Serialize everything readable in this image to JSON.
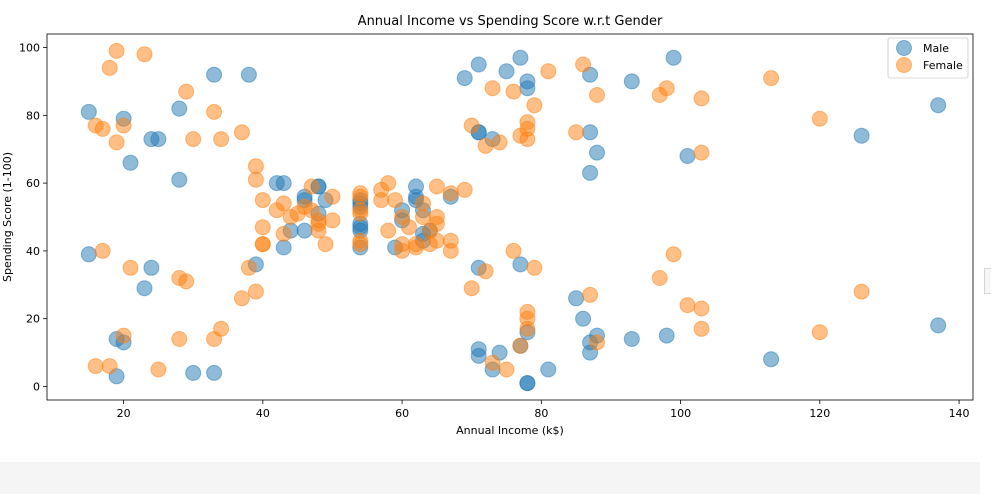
{
  "chart_data": {
    "type": "scatter",
    "title": "Annual Income vs Spending Score w.r.t Gender",
    "xlabel": "Annual Income (k$)",
    "ylabel": "Spending Score (1-100)",
    "xlim": [
      9,
      142
    ],
    "ylim": [
      -4,
      104
    ],
    "xticks": [
      20,
      40,
      60,
      80,
      100,
      120,
      140
    ],
    "yticks": [
      0,
      20,
      40,
      60,
      80,
      100
    ],
    "grid": false,
    "legend_position": "top-right",
    "series": [
      {
        "name": "Male",
        "color": "#1f77b4",
        "points": [
          [
            15,
            39
          ],
          [
            15,
            81
          ],
          [
            19,
            3
          ],
          [
            19,
            14
          ],
          [
            20,
            13
          ],
          [
            20,
            79
          ],
          [
            21,
            66
          ],
          [
            23,
            29
          ],
          [
            24,
            35
          ],
          [
            24,
            73
          ],
          [
            25,
            73
          ],
          [
            28,
            61
          ],
          [
            28,
            82
          ],
          [
            30,
            4
          ],
          [
            33,
            4
          ],
          [
            33,
            92
          ],
          [
            38,
            92
          ],
          [
            39,
            36
          ],
          [
            42,
            60
          ],
          [
            43,
            60
          ],
          [
            43,
            41
          ],
          [
            44,
            46
          ],
          [
            46,
            46
          ],
          [
            46,
            56
          ],
          [
            46,
            55
          ],
          [
            48,
            59
          ],
          [
            48,
            59
          ],
          [
            48,
            51
          ],
          [
            49,
            55
          ],
          [
            54,
            41
          ],
          [
            54,
            46
          ],
          [
            54,
            48
          ],
          [
            54,
            47
          ],
          [
            54,
            53
          ],
          [
            54,
            54
          ],
          [
            54,
            55
          ],
          [
            59,
            41
          ],
          [
            60,
            49
          ],
          [
            60,
            52
          ],
          [
            62,
            59
          ],
          [
            62,
            55
          ],
          [
            62,
            56
          ],
          [
            63,
            52
          ],
          [
            63,
            43
          ],
          [
            63,
            45
          ],
          [
            64,
            46
          ],
          [
            67,
            56
          ],
          [
            69,
            91
          ],
          [
            71,
            95
          ],
          [
            71,
            75
          ],
          [
            71,
            75
          ],
          [
            71,
            35
          ],
          [
            71,
            11
          ],
          [
            71,
            9
          ],
          [
            73,
            73
          ],
          [
            73,
            5
          ],
          [
            74,
            10
          ],
          [
            75,
            93
          ],
          [
            77,
            97
          ],
          [
            77,
            36
          ],
          [
            77,
            12
          ],
          [
            78,
            1
          ],
          [
            78,
            1
          ],
          [
            78,
            16
          ],
          [
            78,
            88
          ],
          [
            78,
            90
          ],
          [
            81,
            5
          ],
          [
            85,
            26
          ],
          [
            86,
            20
          ],
          [
            87,
            92
          ],
          [
            87,
            75
          ],
          [
            87,
            63
          ],
          [
            87,
            13
          ],
          [
            87,
            10
          ],
          [
            88,
            15
          ],
          [
            88,
            69
          ],
          [
            93,
            14
          ],
          [
            93,
            90
          ],
          [
            98,
            15
          ],
          [
            99,
            97
          ],
          [
            101,
            68
          ],
          [
            113,
            8
          ],
          [
            126,
            74
          ],
          [
            137,
            18
          ],
          [
            137,
            83
          ]
        ]
      },
      {
        "name": "Female",
        "color": "#ff7f0e",
        "points": [
          [
            16,
            6
          ],
          [
            16,
            77
          ],
          [
            17,
            40
          ],
          [
            17,
            76
          ],
          [
            18,
            6
          ],
          [
            18,
            94
          ],
          [
            19,
            72
          ],
          [
            19,
            99
          ],
          [
            20,
            15
          ],
          [
            20,
            77
          ],
          [
            21,
            35
          ],
          [
            23,
            98
          ],
          [
            25,
            5
          ],
          [
            28,
            14
          ],
          [
            28,
            32
          ],
          [
            29,
            31
          ],
          [
            29,
            87
          ],
          [
            30,
            73
          ],
          [
            33,
            14
          ],
          [
            33,
            81
          ],
          [
            34,
            17
          ],
          [
            34,
            73
          ],
          [
            37,
            26
          ],
          [
            37,
            75
          ],
          [
            38,
            35
          ],
          [
            39,
            28
          ],
          [
            39,
            61
          ],
          [
            39,
            65
          ],
          [
            40,
            42
          ],
          [
            40,
            42
          ],
          [
            40,
            47
          ],
          [
            40,
            55
          ],
          [
            42,
            52
          ],
          [
            43,
            45
          ],
          [
            43,
            54
          ],
          [
            44,
            50
          ],
          [
            45,
            51
          ],
          [
            46,
            53
          ],
          [
            47,
            59
          ],
          [
            47,
            52
          ],
          [
            48,
            46
          ],
          [
            48,
            48
          ],
          [
            48,
            49
          ],
          [
            49,
            42
          ],
          [
            50,
            56
          ],
          [
            50,
            49
          ],
          [
            54,
            43
          ],
          [
            54,
            42
          ],
          [
            54,
            52
          ],
          [
            54,
            56
          ],
          [
            54,
            51
          ],
          [
            54,
            57
          ],
          [
            57,
            58
          ],
          [
            57,
            55
          ],
          [
            58,
            46
          ],
          [
            58,
            60
          ],
          [
            59,
            55
          ],
          [
            60,
            40
          ],
          [
            60,
            42
          ],
          [
            60,
            50
          ],
          [
            61,
            47
          ],
          [
            62,
            42
          ],
          [
            62,
            41
          ],
          [
            63,
            54
          ],
          [
            63,
            50
          ],
          [
            64,
            42
          ],
          [
            64,
            46
          ],
          [
            65,
            48
          ],
          [
            65,
            50
          ],
          [
            65,
            43
          ],
          [
            65,
            59
          ],
          [
            67,
            40
          ],
          [
            67,
            43
          ],
          [
            67,
            57
          ],
          [
            69,
            58
          ],
          [
            70,
            77
          ],
          [
            70,
            29
          ],
          [
            72,
            34
          ],
          [
            72,
            71
          ],
          [
            73,
            88
          ],
          [
            73,
            7
          ],
          [
            74,
            72
          ],
          [
            75,
            5
          ],
          [
            76,
            87
          ],
          [
            76,
            40
          ],
          [
            77,
            74
          ],
          [
            77,
            12
          ],
          [
            78,
            22
          ],
          [
            78,
            17
          ],
          [
            78,
            20
          ],
          [
            78,
            76
          ],
          [
            78,
            78
          ],
          [
            78,
            73
          ],
          [
            79,
            35
          ],
          [
            79,
            83
          ],
          [
            81,
            93
          ],
          [
            85,
            75
          ],
          [
            86,
            95
          ],
          [
            87,
            27
          ],
          [
            88,
            13
          ],
          [
            88,
            86
          ],
          [
            97,
            32
          ],
          [
            97,
            86
          ],
          [
            98,
            88
          ],
          [
            99,
            39
          ],
          [
            101,
            24
          ],
          [
            103,
            17
          ],
          [
            103,
            23
          ],
          [
            103,
            69
          ],
          [
            103,
            85
          ],
          [
            113,
            91
          ],
          [
            120,
            16
          ],
          [
            120,
            79
          ],
          [
            126,
            28
          ]
        ]
      }
    ]
  }
}
